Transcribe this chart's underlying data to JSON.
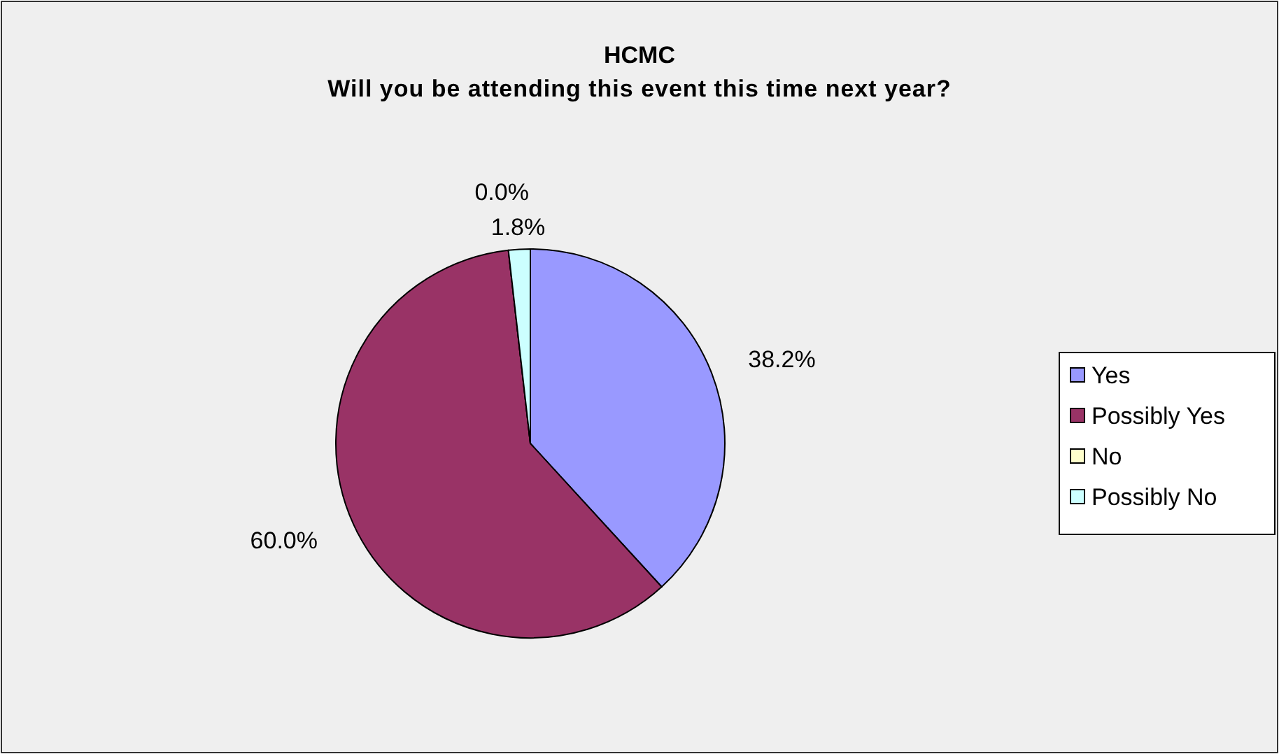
{
  "chart_data": {
    "type": "pie",
    "title": "HCMC",
    "subtitle": "Will you be attending this event this time next year?",
    "categories": [
      "Yes",
      "Possibly Yes",
      "No",
      "Possibly No"
    ],
    "values": [
      38.2,
      60.0,
      0.0,
      1.8
    ],
    "colors": [
      "#9999ff",
      "#993366",
      "#ffffcc",
      "#ccffff"
    ],
    "value_labels": [
      "38.2%",
      "60.0%",
      "0.0%",
      "1.8%"
    ],
    "legend": "right"
  }
}
